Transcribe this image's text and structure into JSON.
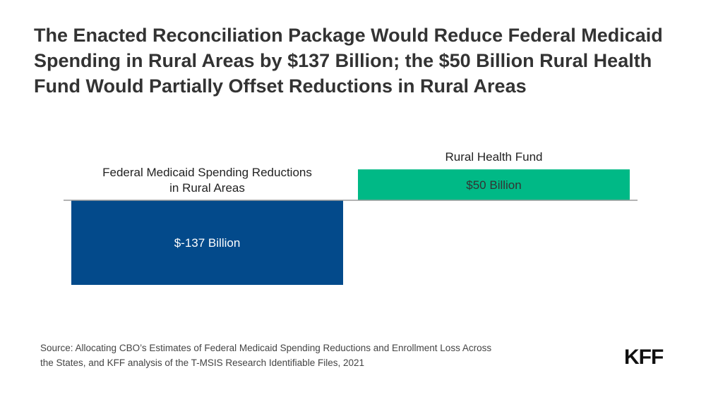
{
  "title": "The Enacted Reconciliation Package Would Reduce Federal Medicaid Spending in Rural Areas by $137 Billion; the $50 Billion Rural Health Fund Would Partially Offset Reductions in Rural Areas",
  "chart_data": {
    "type": "bar",
    "categories": [
      [
        "Federal Medicaid Spending Reductions",
        "in Rural Areas"
      ],
      [
        "Rural Health Fund"
      ]
    ],
    "values": [
      -137,
      50
    ],
    "data_labels": [
      "$-137 Billion",
      "$50 Billion"
    ],
    "colors": [
      "#034a8b",
      "#00b986"
    ],
    "label_colors": [
      "#ffffff",
      "#333333"
    ],
    "ylim": [
      -137,
      50
    ],
    "grid": false,
    "unit": "Billion"
  },
  "source": {
    "line1": "Source: Allocating CBO’s Estimates of Federal Medicaid Spending Reductions and Enrollment Loss Across",
    "line2": "the States, and KFF analysis of the T-MSIS Research Identifiable Files, 2021"
  },
  "logo": "KFF",
  "colors": {
    "baseline": "#9a9a9a",
    "title": "#333333"
  }
}
